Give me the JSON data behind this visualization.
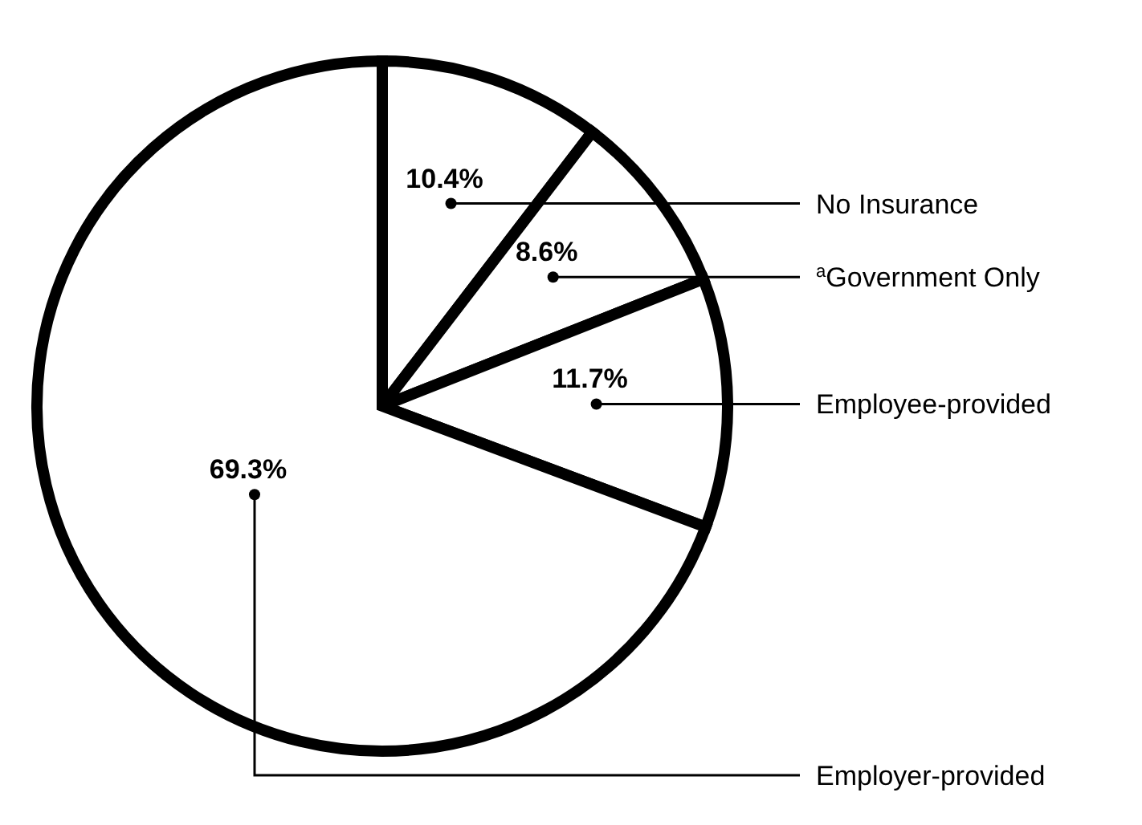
{
  "chart_data": {
    "type": "pie",
    "categories": [
      "No Insurance",
      "$^{a}$Government Only",
      "Employee-provided",
      "Employer-provided"
    ],
    "values": [
      10.4,
      8.6,
      11.7,
      69.3
    ],
    "colors": [
      "#ffffff",
      "#ffffff",
      "#ffffff",
      "#ffffff"
    ],
    "value_labels": [
      "10.4%",
      "8.6%",
      "11.7%",
      "69.3%"
    ]
  }
}
